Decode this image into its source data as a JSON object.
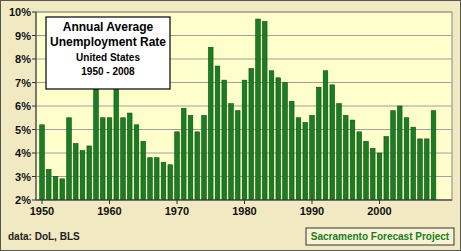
{
  "chart_data": {
    "type": "bar",
    "title": [
      "Annual Average",
      "Unemployment Rate"
    ],
    "subtitle": [
      "United States",
      "1950 - 2008"
    ],
    "annotations": [
      "data: DoL, BLS",
      "Sacramento Forecast Project"
    ],
    "categories": [
      "1950",
      null,
      null,
      null,
      null,
      null,
      null,
      null,
      null,
      null,
      "1960",
      null,
      null,
      null,
      null,
      null,
      null,
      null,
      null,
      null,
      "1970",
      null,
      null,
      null,
      null,
      null,
      null,
      null,
      null,
      null,
      "1980",
      null,
      null,
      null,
      null,
      null,
      null,
      null,
      null,
      null,
      "1990",
      null,
      null,
      null,
      null,
      null,
      null,
      null,
      null,
      null,
      "2000",
      null,
      null,
      null,
      null,
      null,
      null,
      null,
      null
    ],
    "values": [
      5.2,
      3.3,
      3.0,
      2.9,
      5.5,
      4.4,
      4.1,
      4.3,
      6.8,
      5.5,
      5.5,
      6.7,
      5.5,
      5.7,
      5.2,
      4.5,
      3.8,
      3.8,
      3.6,
      3.5,
      4.9,
      5.9,
      5.6,
      4.9,
      5.6,
      8.5,
      7.7,
      7.1,
      6.1,
      5.8,
      7.1,
      7.6,
      9.7,
      9.6,
      7.5,
      7.2,
      7.0,
      6.2,
      5.5,
      5.3,
      5.6,
      6.8,
      7.5,
      6.9,
      6.1,
      5.6,
      5.4,
      4.9,
      4.5,
      4.2,
      4.0,
      4.7,
      5.8,
      6.0,
      5.5,
      5.1,
      4.6,
      4.6,
      5.8
    ],
    "color": "#1b7d22",
    "ylim": [
      2,
      10
    ],
    "yticks": [
      {
        "value": 2,
        "label": "2%"
      },
      {
        "value": 3,
        "label": "3%"
      },
      {
        "value": 4,
        "label": "4%"
      },
      {
        "value": 5,
        "label": "5%"
      },
      {
        "value": 6,
        "label": "6%"
      },
      {
        "value": 7,
        "label": "7%"
      },
      {
        "value": 8,
        "label": "8%"
      },
      {
        "value": 9,
        "label": "9%"
      },
      {
        "value": 10,
        "label": "10%"
      }
    ],
    "grid": true
  }
}
